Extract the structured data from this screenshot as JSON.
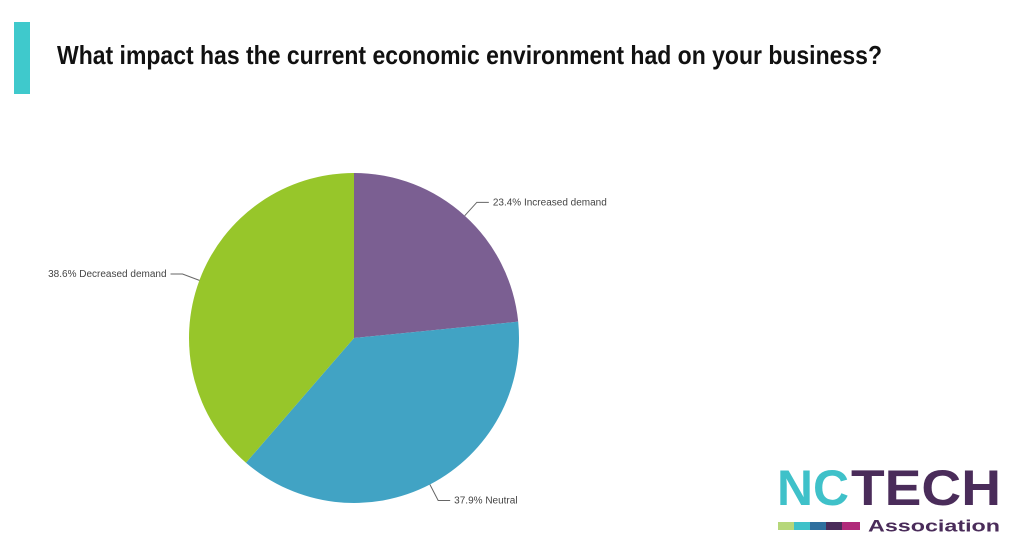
{
  "chart_data": {
    "type": "pie",
    "title": "What impact has the current economic environment had on your business?",
    "categories": [
      "Increased demand",
      "Neutral",
      "Decreased demand"
    ],
    "values": [
      23.4,
      37.9,
      38.6
    ],
    "value_labels": [
      "23.4%",
      "37.9%",
      "38.6%"
    ],
    "colors": [
      "#7b5f92",
      "#41a3c4",
      "#97c62a"
    ]
  },
  "logo": {
    "name_first": "NC",
    "name_second": "TECH",
    "tagline": "Association"
  }
}
